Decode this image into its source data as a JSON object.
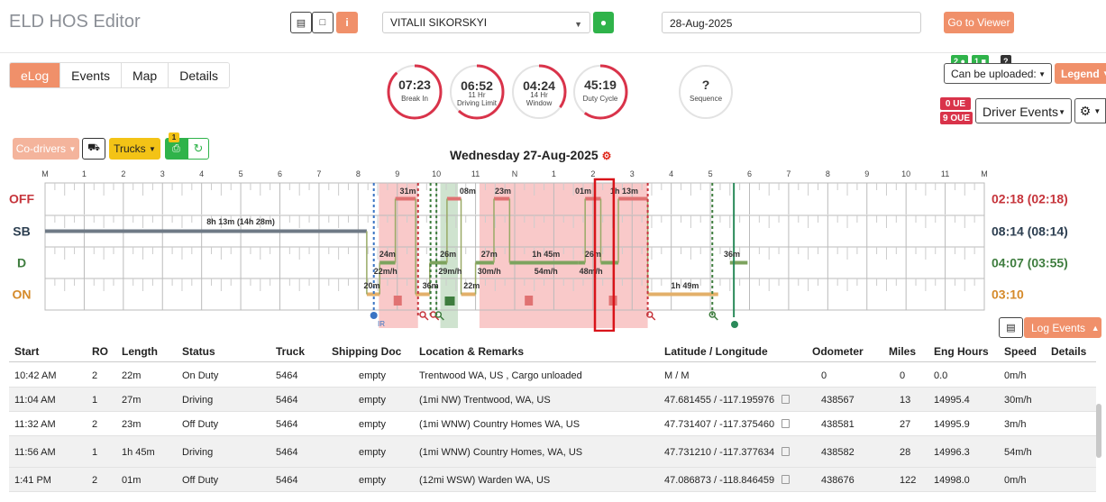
{
  "app": {
    "title": "ELD HOS Editor"
  },
  "header": {
    "driver": "VITALII SIKORSKYI",
    "date": "28-Aug-2025",
    "viewer_label": "Go to Viewer"
  },
  "tabs": [
    {
      "label": "eLog",
      "active": true
    },
    {
      "label": "Events",
      "active": false
    },
    {
      "label": "Map",
      "active": false
    },
    {
      "label": "Details",
      "active": false
    }
  ],
  "gauges": [
    {
      "value": "07:23",
      "label1": "Break In",
      "label2": "",
      "fraction": 0.88
    },
    {
      "value": "06:52",
      "label1": "11 Hr",
      "label2": "Driving Limit",
      "fraction": 0.62
    },
    {
      "value": "04:24",
      "label1": "14 Hr",
      "label2": "Window",
      "fraction": 0.35
    },
    {
      "value": "45:19",
      "label1": "Duty Cycle",
      "label2": "",
      "fraction": 0.6
    },
    {
      "value": "?",
      "label1": "Sequence",
      "label2": "",
      "fraction": 0
    }
  ],
  "upload": {
    "badges": [
      "2",
      "1",
      "?"
    ],
    "select_label": "Can be uploaded:",
    "legend_label": "Legend"
  },
  "ue_badges": {
    "ue": "0 UE",
    "oue": "9 OUE"
  },
  "driver_events_label": "Driver Events",
  "toolbar": {
    "codrivers_label": "Co-drivers",
    "trucks_label": "Trucks",
    "print_badge": "1"
  },
  "day_title": "Wednesday 27-Aug-2025",
  "graph": {
    "hour_labels": [
      "M",
      "1",
      "2",
      "3",
      "4",
      "5",
      "6",
      "7",
      "8",
      "9",
      "10",
      "11",
      "N",
      "1",
      "2",
      "3",
      "4",
      "5",
      "6",
      "7",
      "8",
      "9",
      "10",
      "11",
      "M"
    ],
    "statuses": [
      {
        "label": "OFF",
        "color": "#c6343b",
        "total": "02:18 (02:18)",
        "total_color": "#c6343b"
      },
      {
        "label": "SB",
        "color": "#2c3e50",
        "total": "08:14 (08:14)",
        "total_color": "#2c3e50"
      },
      {
        "label": "D",
        "color": "#3e7d3e",
        "total": "04:07 (03:55)",
        "total_color": "#3e7d3e"
      },
      {
        "label": "ON",
        "color": "#d58a2a",
        "total": "03:10",
        "total_color": "#d58a2a"
      }
    ],
    "duration_labels": [
      {
        "text": "8h 13m (14h 28m)"
      },
      {
        "text": "31m"
      },
      {
        "text": "08m"
      },
      {
        "text": "23m"
      },
      {
        "text": "01m"
      },
      {
        "text": "1h 13m"
      },
      {
        "text": "24m"
      },
      {
        "text": "22m/h"
      },
      {
        "text": "26m"
      },
      {
        "text": "29m/h"
      },
      {
        "text": "27m"
      },
      {
        "text": "30m/h"
      },
      {
        "text": "1h 45m"
      },
      {
        "text": "54m/h"
      },
      {
        "text": "26m"
      },
      {
        "text": "48m/h"
      },
      {
        "text": "36m"
      },
      {
        "text": "20m"
      },
      {
        "text": "36m"
      },
      {
        "text": "22m"
      },
      {
        "text": "1h 49m"
      }
    ],
    "marker_text": "IR"
  },
  "log_events_label": "Log Events",
  "table": {
    "columns": [
      "Start",
      "RO",
      "Length",
      "Status",
      "Truck",
      "Shipping Doc",
      "Location & Remarks",
      "Latitude / Longitude",
      "Odometer",
      "Miles",
      "Eng Hours",
      "Speed",
      "Details"
    ],
    "rows": [
      {
        "start": "10:42 AM",
        "ro": "2",
        "length": "22m",
        "status": "On Duty",
        "truck": "5464",
        "doc": "empty",
        "location": "Trentwood WA, US , Cargo unloaded",
        "latlng": "M / M",
        "copy": false,
        "odometer": "0",
        "miles": "0",
        "eng": "0.0",
        "speed": "0m/h"
      },
      {
        "start": "11:04 AM",
        "ro": "1",
        "length": "27m",
        "status": "Driving",
        "truck": "5464",
        "doc": "empty",
        "location": "(1mi NW) Trentwood, WA, US",
        "latlng": "47.681455 / -117.195976",
        "copy": true,
        "odometer": "438567",
        "miles": "13",
        "eng": "14995.4",
        "speed": "30m/h"
      },
      {
        "start": "11:32 AM",
        "ro": "2",
        "length": "23m",
        "status": "Off Duty",
        "truck": "5464",
        "doc": "empty",
        "location": "(1mi WNW) Country Homes WA, US",
        "latlng": "47.731407 / -117.375460",
        "copy": true,
        "odometer": "438581",
        "miles": "27",
        "eng": "14995.9",
        "speed": "3m/h"
      },
      {
        "start": "11:56 AM",
        "ro": "1",
        "length": "1h 45m",
        "status": "Driving",
        "truck": "5464",
        "doc": "empty",
        "location": "(1mi WNW) Country Homes, WA, US",
        "latlng": "47.731210 / -117.377634",
        "copy": true,
        "odometer": "438582",
        "miles": "28",
        "eng": "14996.3",
        "speed": "54m/h"
      },
      {
        "start": "1:41 PM",
        "ro": "2",
        "length": "01m",
        "status": "Off Duty",
        "truck": "5464",
        "doc": "empty",
        "location": "(12mi WSW) Warden WA, US",
        "latlng": "47.086873 / -118.846459",
        "copy": true,
        "odometer": "438676",
        "miles": "122",
        "eng": "14998.0",
        "speed": "0m/h"
      }
    ]
  }
}
